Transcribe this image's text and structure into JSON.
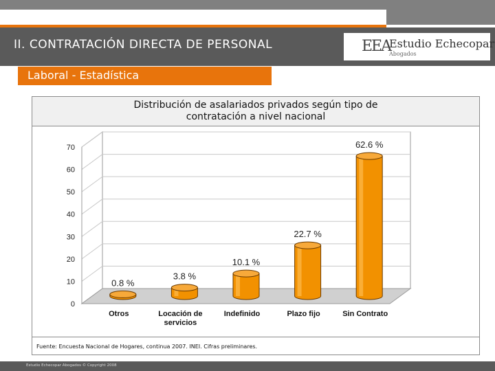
{
  "header": {
    "title": "II. CONTRATACIÓN DIRECTA DE PERSONAL",
    "logo_mark": "EEA",
    "logo_name": "Estudio Echecopar",
    "logo_sub": "Abogados"
  },
  "section": {
    "subtitle": "Laboral - Estadística"
  },
  "chart_data": {
    "type": "bar",
    "title": "Distribución de asalariados privados según tipo de contratación a nivel nacional",
    "title_lines": [
      "Distribución de asalariados privados según tipo de",
      "contratación a nivel nacional"
    ],
    "categories": [
      "Otros",
      "Locación de servicios",
      "Indefinido",
      "Plazo fijo",
      "Sin Contrato"
    ],
    "category_lines": [
      [
        "Otros"
      ],
      [
        "Locación de",
        "servicios"
      ],
      [
        "Indefinido"
      ],
      [
        "Plazo fijo"
      ],
      [
        "Sin Contrato"
      ]
    ],
    "values": [
      0.8,
      3.8,
      10.1,
      22.7,
      62.6
    ],
    "data_labels": [
      "0.8 %",
      "3.8 %",
      "10.1 %",
      "22.7 %",
      "62.6 %"
    ],
    "yticks": [
      0,
      10,
      20,
      30,
      40,
      50,
      60,
      70
    ],
    "ylim": [
      0,
      70
    ],
    "xlabel": "",
    "ylabel": "",
    "grid": true,
    "bar_color": "#f29100",
    "source": "Fuente: Encuesta Nacional de Hogares, continua 2007. INEI. Cifras preliminares."
  },
  "footer": {
    "text": "Estudio Echecopar Abogados © Copyright 2008"
  }
}
